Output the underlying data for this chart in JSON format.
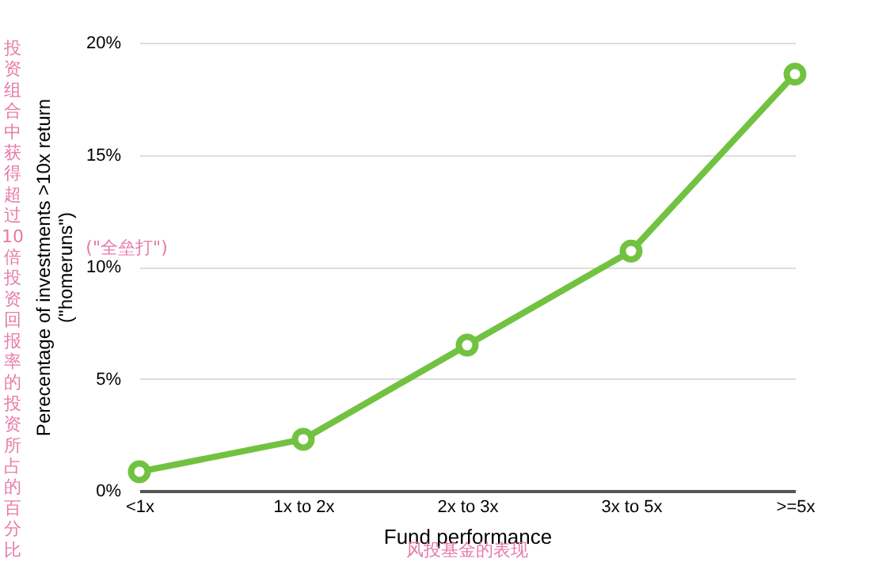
{
  "chart_data": {
    "type": "line",
    "xlabel": "Fund performance",
    "ylabel": "Perecentage of investments >10x return\n(\"homeruns\")",
    "categories": [
      "<1x",
      "1x to 2x",
      "2x to 3x",
      "3x to 5x",
      ">=5x"
    ],
    "series": [
      {
        "color": "#72c241",
        "values": [
          0.85,
          2.3,
          6.5,
          10.7,
          18.6
        ]
      }
    ],
    "ylim": [
      0,
      20
    ],
    "yticks": [
      {
        "value": 0,
        "label": "0%"
      },
      {
        "value": 5,
        "label": "5%"
      },
      {
        "value": 10,
        "label": "10%"
      },
      {
        "value": 15,
        "label": "15%"
      },
      {
        "value": 20,
        "label": "20%"
      }
    ],
    "grid": "y",
    "marker": "circle",
    "line_style": "solid",
    "annotations": [
      "投资组合中获得超过10倍投资回报率的投资所占的百分比",
      "(\"全垒打\")",
      "风投基金的表现"
    ]
  }
}
